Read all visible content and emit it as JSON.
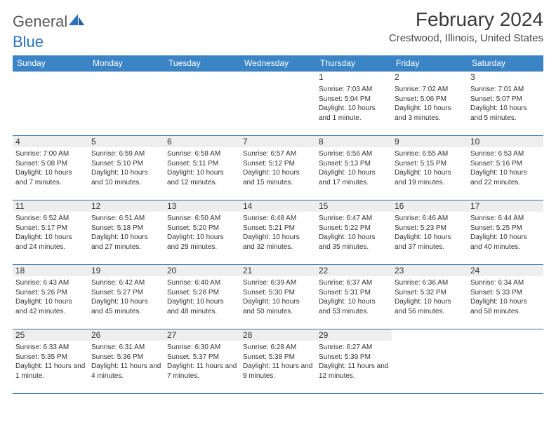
{
  "brand": {
    "word1": "General",
    "word2": "Blue"
  },
  "title": "February 2024",
  "location": "Crestwood, Illinois, United States",
  "colors": {
    "header_bg": "#3b85c6",
    "header_text": "#ffffff",
    "rule": "#2f6fa8",
    "daybar_bg": "#eeeeee",
    "text": "#333333",
    "brand_gray": "#5a5a5a",
    "brand_blue": "#2b73b9"
  },
  "typography": {
    "title_fontsize": 28,
    "location_fontsize": 15,
    "header_fontsize": 12,
    "day_fontsize": 12,
    "info_fontsize": 10
  },
  "weekdays": [
    "Sunday",
    "Monday",
    "Tuesday",
    "Wednesday",
    "Thursday",
    "Friday",
    "Saturday"
  ],
  "weeks": [
    [
      null,
      null,
      null,
      null,
      {
        "n": "1",
        "sunrise": "Sunrise: 7:03 AM",
        "sunset": "Sunset: 5:04 PM",
        "daylight": "Daylight: 10 hours and 1 minute."
      },
      {
        "n": "2",
        "sunrise": "Sunrise: 7:02 AM",
        "sunset": "Sunset: 5:06 PM",
        "daylight": "Daylight: 10 hours and 3 minutes."
      },
      {
        "n": "3",
        "sunrise": "Sunrise: 7:01 AM",
        "sunset": "Sunset: 5:07 PM",
        "daylight": "Daylight: 10 hours and 5 minutes."
      }
    ],
    [
      {
        "n": "4",
        "sunrise": "Sunrise: 7:00 AM",
        "sunset": "Sunset: 5:08 PM",
        "daylight": "Daylight: 10 hours and 7 minutes."
      },
      {
        "n": "5",
        "sunrise": "Sunrise: 6:59 AM",
        "sunset": "Sunset: 5:10 PM",
        "daylight": "Daylight: 10 hours and 10 minutes."
      },
      {
        "n": "6",
        "sunrise": "Sunrise: 6:58 AM",
        "sunset": "Sunset: 5:11 PM",
        "daylight": "Daylight: 10 hours and 12 minutes."
      },
      {
        "n": "7",
        "sunrise": "Sunrise: 6:57 AM",
        "sunset": "Sunset: 5:12 PM",
        "daylight": "Daylight: 10 hours and 15 minutes."
      },
      {
        "n": "8",
        "sunrise": "Sunrise: 6:56 AM",
        "sunset": "Sunset: 5:13 PM",
        "daylight": "Daylight: 10 hours and 17 minutes."
      },
      {
        "n": "9",
        "sunrise": "Sunrise: 6:55 AM",
        "sunset": "Sunset: 5:15 PM",
        "daylight": "Daylight: 10 hours and 19 minutes."
      },
      {
        "n": "10",
        "sunrise": "Sunrise: 6:53 AM",
        "sunset": "Sunset: 5:16 PM",
        "daylight": "Daylight: 10 hours and 22 minutes."
      }
    ],
    [
      {
        "n": "11",
        "sunrise": "Sunrise: 6:52 AM",
        "sunset": "Sunset: 5:17 PM",
        "daylight": "Daylight: 10 hours and 24 minutes."
      },
      {
        "n": "12",
        "sunrise": "Sunrise: 6:51 AM",
        "sunset": "Sunset: 5:18 PM",
        "daylight": "Daylight: 10 hours and 27 minutes."
      },
      {
        "n": "13",
        "sunrise": "Sunrise: 6:50 AM",
        "sunset": "Sunset: 5:20 PM",
        "daylight": "Daylight: 10 hours and 29 minutes."
      },
      {
        "n": "14",
        "sunrise": "Sunrise: 6:48 AM",
        "sunset": "Sunset: 5:21 PM",
        "daylight": "Daylight: 10 hours and 32 minutes."
      },
      {
        "n": "15",
        "sunrise": "Sunrise: 6:47 AM",
        "sunset": "Sunset: 5:22 PM",
        "daylight": "Daylight: 10 hours and 35 minutes."
      },
      {
        "n": "16",
        "sunrise": "Sunrise: 6:46 AM",
        "sunset": "Sunset: 5:23 PM",
        "daylight": "Daylight: 10 hours and 37 minutes."
      },
      {
        "n": "17",
        "sunrise": "Sunrise: 6:44 AM",
        "sunset": "Sunset: 5:25 PM",
        "daylight": "Daylight: 10 hours and 40 minutes."
      }
    ],
    [
      {
        "n": "18",
        "sunrise": "Sunrise: 6:43 AM",
        "sunset": "Sunset: 5:26 PM",
        "daylight": "Daylight: 10 hours and 42 minutes."
      },
      {
        "n": "19",
        "sunrise": "Sunrise: 6:42 AM",
        "sunset": "Sunset: 5:27 PM",
        "daylight": "Daylight: 10 hours and 45 minutes."
      },
      {
        "n": "20",
        "sunrise": "Sunrise: 6:40 AM",
        "sunset": "Sunset: 5:28 PM",
        "daylight": "Daylight: 10 hours and 48 minutes."
      },
      {
        "n": "21",
        "sunrise": "Sunrise: 6:39 AM",
        "sunset": "Sunset: 5:30 PM",
        "daylight": "Daylight: 10 hours and 50 minutes."
      },
      {
        "n": "22",
        "sunrise": "Sunrise: 6:37 AM",
        "sunset": "Sunset: 5:31 PM",
        "daylight": "Daylight: 10 hours and 53 minutes."
      },
      {
        "n": "23",
        "sunrise": "Sunrise: 6:36 AM",
        "sunset": "Sunset: 5:32 PM",
        "daylight": "Daylight: 10 hours and 56 minutes."
      },
      {
        "n": "24",
        "sunrise": "Sunrise: 6:34 AM",
        "sunset": "Sunset: 5:33 PM",
        "daylight": "Daylight: 10 hours and 58 minutes."
      }
    ],
    [
      {
        "n": "25",
        "sunrise": "Sunrise: 6:33 AM",
        "sunset": "Sunset: 5:35 PM",
        "daylight": "Daylight: 11 hours and 1 minute."
      },
      {
        "n": "26",
        "sunrise": "Sunrise: 6:31 AM",
        "sunset": "Sunset: 5:36 PM",
        "daylight": "Daylight: 11 hours and 4 minutes."
      },
      {
        "n": "27",
        "sunrise": "Sunrise: 6:30 AM",
        "sunset": "Sunset: 5:37 PM",
        "daylight": "Daylight: 11 hours and 7 minutes."
      },
      {
        "n": "28",
        "sunrise": "Sunrise: 6:28 AM",
        "sunset": "Sunset: 5:38 PM",
        "daylight": "Daylight: 11 hours and 9 minutes."
      },
      {
        "n": "29",
        "sunrise": "Sunrise: 6:27 AM",
        "sunset": "Sunset: 5:39 PM",
        "daylight": "Daylight: 11 hours and 12 minutes."
      },
      null,
      null
    ]
  ]
}
